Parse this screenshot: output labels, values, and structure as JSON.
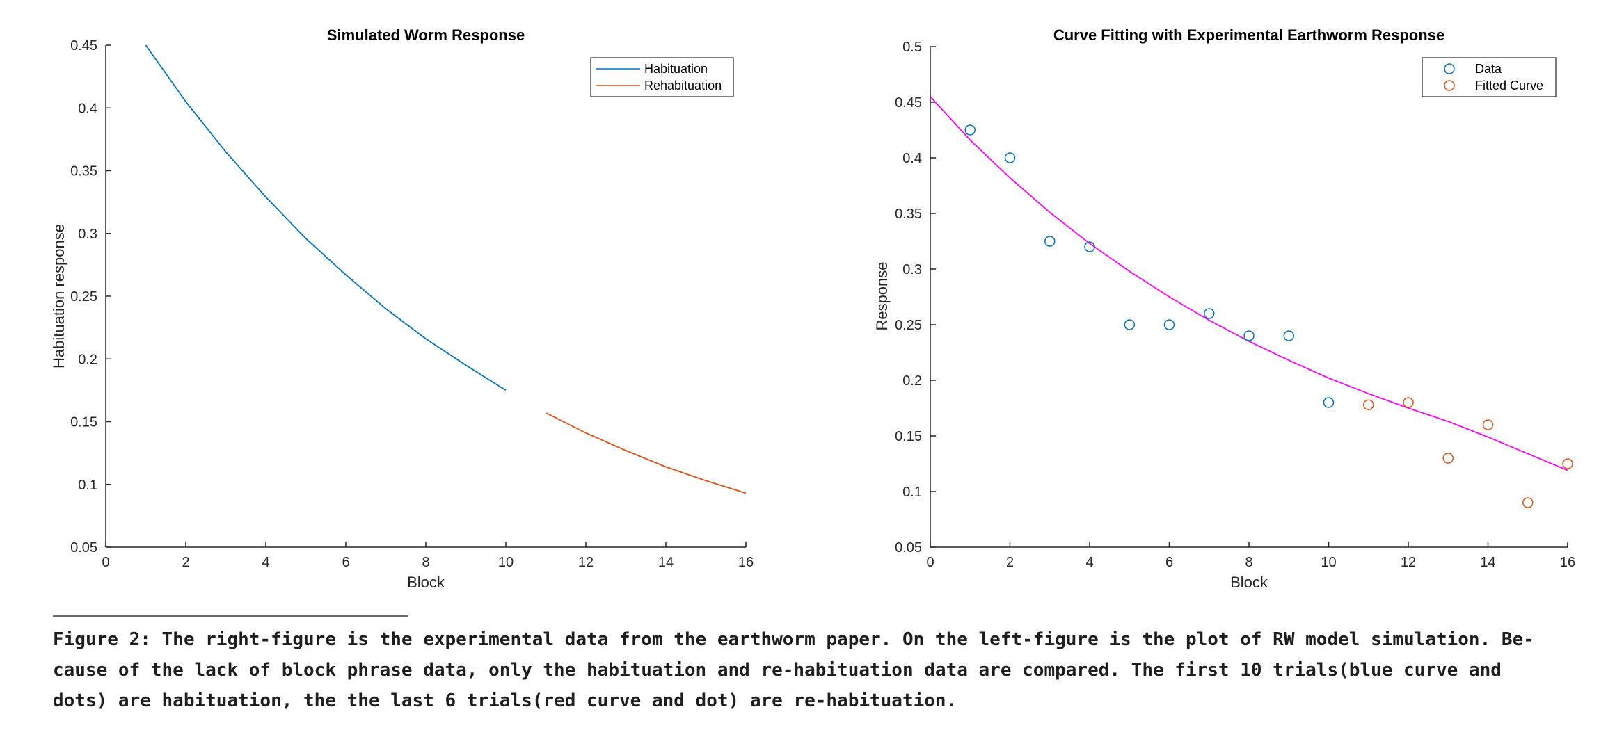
{
  "colors": {
    "blue": "#0072BD",
    "orange": "#D95319",
    "magenta": "#FF00FF",
    "axis": "#262626"
  },
  "chart_data": [
    {
      "type": "line",
      "title": "Simulated Worm Response",
      "xlabel": "Block",
      "ylabel": "Habituation response",
      "xlim": [
        0,
        16
      ],
      "ylim": [
        0.05,
        0.45
      ],
      "xticks": [
        0,
        2,
        4,
        6,
        8,
        10,
        12,
        14,
        16
      ],
      "yticks": [
        0.05,
        0.1,
        0.15,
        0.2,
        0.25,
        0.3,
        0.35,
        0.4,
        0.45
      ],
      "xtick_labels": [
        "0",
        "2",
        "4",
        "6",
        "8",
        "10",
        "12",
        "14",
        "16"
      ],
      "ytick_labels": [
        "0.05",
        "0.1",
        "0.15",
        "0.2",
        "0.25",
        "0.3",
        "0.35",
        "0.4",
        "0.45"
      ],
      "grid": false,
      "legend": "top-right",
      "series": [
        {
          "name": "Habituation",
          "color": "#0072BD",
          "x": [
            1,
            2,
            3,
            4,
            5,
            6,
            7,
            8,
            9,
            10
          ],
          "y": [
            0.45,
            0.405,
            0.365,
            0.329,
            0.296,
            0.267,
            0.24,
            0.216,
            0.195,
            0.175
          ]
        },
        {
          "name": "Rehabituation",
          "color": "#D95319",
          "x": [
            11,
            12,
            13,
            14,
            15,
            16
          ],
          "y": [
            0.157,
            0.141,
            0.127,
            0.114,
            0.103,
            0.093
          ]
        }
      ]
    },
    {
      "type": "scatter",
      "title": "Curve Fitting with Experimental Earthworm Response",
      "xlabel": "Block",
      "ylabel": "Response",
      "xlim": [
        0,
        16
      ],
      "ylim": [
        0.05,
        0.5
      ],
      "xticks": [
        0,
        2,
        4,
        6,
        8,
        10,
        12,
        14,
        16
      ],
      "yticks": [
        0.05,
        0.1,
        0.15,
        0.2,
        0.25,
        0.3,
        0.35,
        0.4,
        0.45,
        0.5
      ],
      "xtick_labels": [
        "0",
        "2",
        "4",
        "6",
        "8",
        "10",
        "12",
        "14",
        "16"
      ],
      "ytick_labels": [
        "0.05",
        "0.1",
        "0.15",
        "0.2",
        "0.25",
        "0.3",
        "0.35",
        "0.4",
        "0.45",
        "0.5"
      ],
      "grid": false,
      "legend": "top-right",
      "series": [
        {
          "name": "Data",
          "color": "#0072BD",
          "marker": "circle",
          "x": [
            1,
            2,
            3,
            4,
            5,
            6,
            7,
            8,
            9,
            10
          ],
          "y": [
            0.425,
            0.4,
            0.325,
            0.32,
            0.25,
            0.25,
            0.26,
            0.24,
            0.24,
            0.18
          ]
        },
        {
          "name": "Fitted Curve",
          "color": "#D95319",
          "marker": "circle",
          "x": [
            11,
            12,
            13,
            14,
            15,
            16
          ],
          "y": [
            0.178,
            0.18,
            0.13,
            0.16,
            0.09,
            0.125
          ]
        }
      ],
      "fit_line": {
        "color": "#FF00FF",
        "x": [
          0,
          1,
          2,
          3,
          4,
          5,
          6,
          7,
          8,
          9,
          10,
          11,
          12,
          13,
          14,
          15,
          16
        ],
        "y": [
          0.455,
          0.416,
          0.382,
          0.351,
          0.323,
          0.298,
          0.275,
          0.254,
          0.235,
          0.218,
          0.202,
          0.188,
          0.175,
          0.163,
          0.149,
          0.134,
          0.119
        ]
      }
    }
  ],
  "caption": {
    "lines": [
      "Figure 2: The right-figure is the experimental data from the earthworm paper. On the left-figure is the plot of RW model simulation. Be-",
      "cause of the lack of block phrase data, only the habituation and re-habituation data are compared. The first 10 trials(blue curve and",
      "dots) are habituation, the the last 6 trials(red curve and dot) are re-habituation."
    ]
  }
}
